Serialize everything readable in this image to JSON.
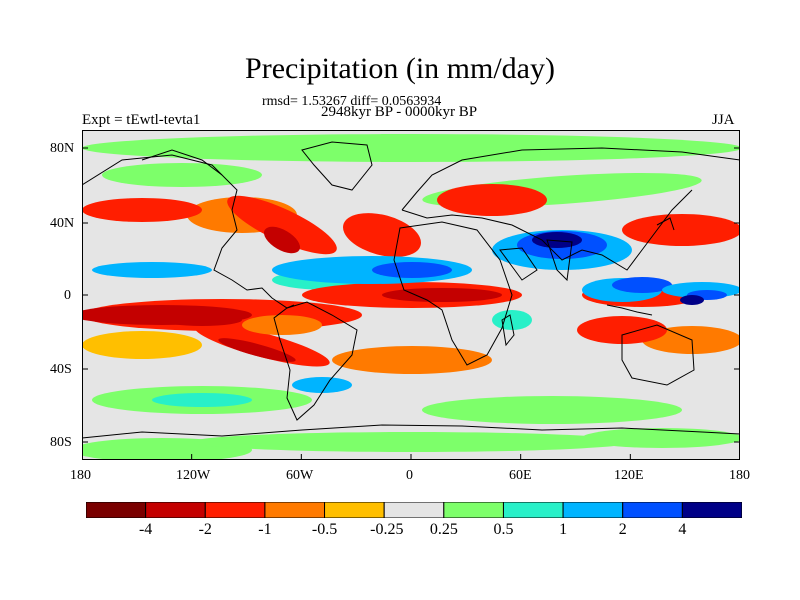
{
  "title": "Precipitation (in mm/day)",
  "stats": "rmsd= 1.53267 diff= 0.0563934",
  "period": "2948kyr BP - 0000kyr BP",
  "experiment": "Expt = tEwtl-tevta1",
  "season": "JJA",
  "lat_labels": [
    "80N",
    "40N",
    "0",
    "40S",
    "80S"
  ],
  "lon_labels": [
    "180",
    "120W",
    "60W",
    "0",
    "60E",
    "120E",
    "180"
  ],
  "colorbar": {
    "colors": [
      "#7a0000",
      "#c40000",
      "#ff1e00",
      "#ff7a00",
      "#ffbf00",
      "#e5e5e5",
      "#7dff6a",
      "#28f0c8",
      "#00b4ff",
      "#0050ff",
      "#000087"
    ],
    "labels": [
      "-4",
      "-2",
      "-1",
      "-0.5",
      "-0.25",
      "0.25",
      "0.5",
      "1",
      "2",
      "4"
    ]
  },
  "field_colors": {
    "neutral": "#e5e5e5",
    "green": "#7dff6a",
    "teal": "#28f0c8",
    "lightblue": "#00b4ff",
    "blue": "#0050ff",
    "darkblue": "#000087",
    "yellow": "#ffbf00",
    "orange": "#ff7a00",
    "red": "#ff1e00",
    "darkred": "#c40000",
    "maroon": "#7a0000"
  }
}
